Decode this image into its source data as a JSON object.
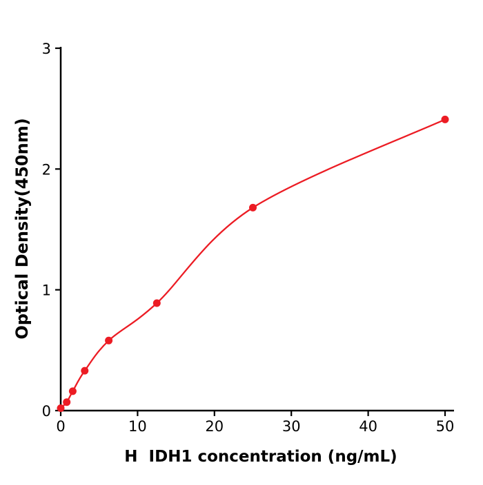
{
  "chart_data": {
    "type": "scatter",
    "title": "",
    "xlabel": "H  IDH1 concentration (ng/mL)",
    "ylabel": "Optical Density(450nm)",
    "xlim": [
      0,
      50
    ],
    "ylim": [
      0,
      3
    ],
    "x_ticks": [
      0,
      10,
      20,
      30,
      40,
      50
    ],
    "y_ticks": [
      0,
      1,
      2,
      3
    ],
    "grid": false,
    "legend": null,
    "series_color": "#ec1c24",
    "axis_color": "#000000",
    "points": [
      {
        "x": 0,
        "y": 0.02
      },
      {
        "x": 0.78,
        "y": 0.07
      },
      {
        "x": 1.56,
        "y": 0.16
      },
      {
        "x": 3.125,
        "y": 0.33
      },
      {
        "x": 6.25,
        "y": 0.58
      },
      {
        "x": 12.5,
        "y": 0.89
      },
      {
        "x": 25,
        "y": 1.68
      },
      {
        "x": 50,
        "y": 2.41
      }
    ]
  }
}
